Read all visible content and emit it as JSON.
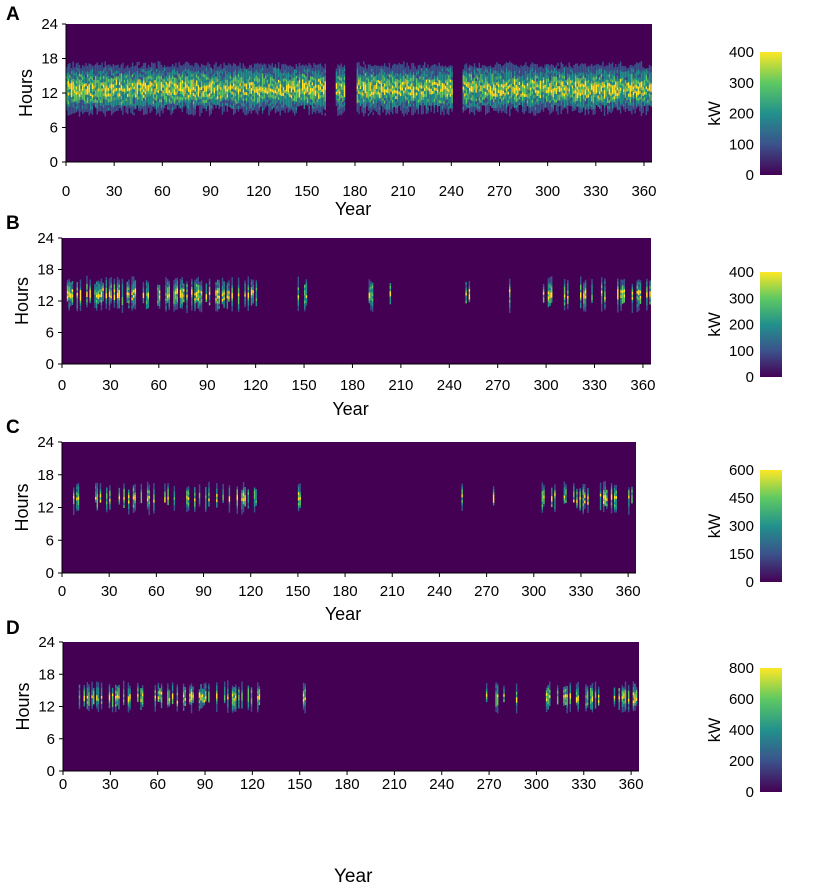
{
  "figure": {
    "bottom_label": "Year"
  },
  "colors": {
    "background": "#440154",
    "colormap": [
      "#440154",
      "#3b528b",
      "#21918c",
      "#5ec962",
      "#fde725"
    ]
  },
  "chart_data": [
    {
      "panel": "A",
      "type": "heatmap",
      "xlabel": "Year",
      "ylabel": "Hours",
      "xlim": [
        0,
        365
      ],
      "ylim": [
        0,
        24
      ],
      "xticks": [
        0,
        30,
        60,
        90,
        120,
        150,
        180,
        210,
        240,
        270,
        300,
        330,
        360
      ],
      "yticks": [
        0,
        6,
        12,
        18,
        24
      ],
      "colorbar": {
        "label": "kW",
        "min": 0,
        "max": 400,
        "ticks": [
          0,
          100,
          200,
          300,
          400
        ]
      },
      "activity": [
        [
          0,
          365,
          1.0
        ]
      ],
      "gaps": [
        [
          162,
          168
        ],
        [
          174,
          181
        ],
        [
          241,
          247
        ]
      ],
      "hour_range": [
        7,
        18
      ],
      "peak": 400
    },
    {
      "panel": "B",
      "type": "heatmap",
      "xlabel": "Year",
      "ylabel": "Hours",
      "xlim": [
        0,
        365
      ],
      "ylim": [
        0,
        24
      ],
      "xticks": [
        0,
        30,
        60,
        90,
        120,
        150,
        180,
        210,
        240,
        270,
        300,
        330,
        360
      ],
      "yticks": [
        0,
        6,
        12,
        18,
        24
      ],
      "colorbar": {
        "label": "kW",
        "min": 0,
        "max": 400,
        "ticks": [
          0,
          100,
          200,
          300,
          400
        ]
      },
      "activity": [
        [
          3,
          125,
          0.55
        ],
        [
          144,
          154,
          0.4
        ],
        [
          190,
          193,
          0.3
        ],
        [
          202,
          205,
          0.3
        ],
        [
          250,
          258,
          0.45
        ],
        [
          272,
          278,
          0.4
        ],
        [
          298,
          365,
          0.45
        ]
      ],
      "gaps": [],
      "hour_range": [
        9,
        17
      ],
      "peak": 400
    },
    {
      "panel": "C",
      "type": "heatmap",
      "xlabel": "Year",
      "ylabel": "Hours",
      "xlim": [
        0,
        365
      ],
      "ylim": [
        0,
        24
      ],
      "xticks": [
        0,
        30,
        60,
        90,
        120,
        150,
        180,
        210,
        240,
        270,
        300,
        330,
        360
      ],
      "yticks": [
        0,
        6,
        12,
        18,
        24
      ],
      "colorbar": {
        "label": "kW",
        "min": 0,
        "max": 600,
        "ticks": [
          0,
          150,
          300,
          450,
          600
        ]
      },
      "activity": [
        [
          5,
          125,
          0.3
        ],
        [
          150,
          153,
          0.3
        ],
        [
          253,
          256,
          0.3
        ],
        [
          270,
          275,
          0.3
        ],
        [
          305,
          365,
          0.3
        ]
      ],
      "gaps": [],
      "hour_range": [
        10,
        17
      ],
      "peak": 600
    },
    {
      "panel": "D",
      "type": "heatmap",
      "xlabel": "",
      "ylabel": "Hours",
      "xlim": [
        0,
        365
      ],
      "ylim": [
        0,
        24
      ],
      "xticks": [
        0,
        30,
        60,
        90,
        120,
        150,
        180,
        210,
        240,
        270,
        300,
        330,
        360
      ],
      "yticks": [
        0,
        6,
        12,
        18,
        24
      ],
      "colorbar": {
        "label": "kW",
        "min": 0,
        "max": 800,
        "ticks": [
          0,
          200,
          400,
          600,
          800
        ]
      },
      "activity": [
        [
          5,
          125,
          0.38
        ],
        [
          150,
          154,
          0.35
        ],
        [
          253,
          256,
          0.3
        ],
        [
          268,
          280,
          0.3
        ],
        [
          285,
          288,
          0.25
        ],
        [
          305,
          365,
          0.38
        ]
      ],
      "gaps": [],
      "hour_range": [
        10,
        17
      ],
      "peak": 800
    }
  ]
}
